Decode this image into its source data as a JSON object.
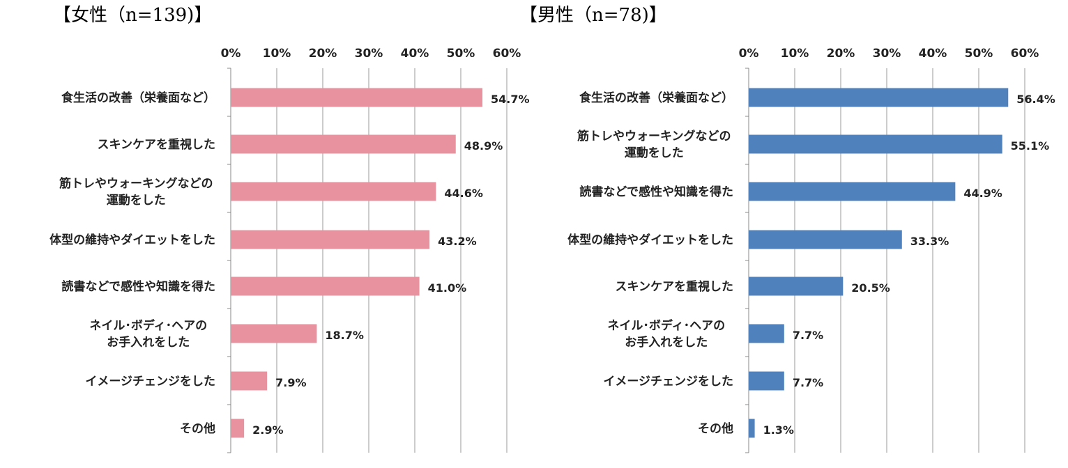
{
  "chart_data": [
    {
      "type": "bar",
      "orientation": "horizontal",
      "title": "【女性（n=139)】",
      "xlim": [
        0,
        60
      ],
      "ticks": [
        "0%",
        "10%",
        "20%",
        "30%",
        "40%",
        "50%",
        "60%"
      ],
      "color": "#e8919f",
      "grid": "vertical",
      "categories": [
        [
          "食生活の改善（栄養面など）"
        ],
        [
          "スキンケアを重視した"
        ],
        [
          "筋トレやウォーキングなどの",
          "運動をした"
        ],
        [
          "体型の維持やダイエットをした"
        ],
        [
          "読書などで感性や知識を得た"
        ],
        [
          "ネイル･ボディ･ヘアの",
          "お手入れをした"
        ],
        [
          "イメージチェンジをした"
        ],
        [
          "その他"
        ]
      ],
      "values": [
        54.7,
        48.9,
        44.6,
        43.2,
        41.0,
        18.7,
        7.9,
        2.9
      ],
      "value_labels": [
        "54.7%",
        "48.9%",
        "44.6%",
        "43.2%",
        "41.0%",
        "18.7%",
        "7.9%",
        "2.9%"
      ]
    },
    {
      "type": "bar",
      "orientation": "horizontal",
      "title": "【男性（n=78)】",
      "xlim": [
        0,
        60
      ],
      "ticks": [
        "0%",
        "10%",
        "20%",
        "30%",
        "40%",
        "50%",
        "60%"
      ],
      "color": "#4f81bd",
      "grid": "vertical",
      "categories": [
        [
          "食生活の改善（栄養面など）"
        ],
        [
          "筋トレやウォーキングなどの",
          "運動をした"
        ],
        [
          "読書などで感性や知識を得た"
        ],
        [
          "体型の維持やダイエットをした"
        ],
        [
          "スキンケアを重視した"
        ],
        [
          "ネイル･ボディ･ヘアの",
          "お手入れをした"
        ],
        [
          "イメージチェンジをした"
        ],
        [
          "その他"
        ]
      ],
      "values": [
        56.4,
        55.1,
        44.9,
        33.3,
        20.5,
        7.7,
        7.7,
        1.3
      ],
      "value_labels": [
        "56.4%",
        "55.1%",
        "44.9%",
        "33.3%",
        "20.5%",
        "7.7%",
        "7.7%",
        "1.3%"
      ]
    }
  ]
}
